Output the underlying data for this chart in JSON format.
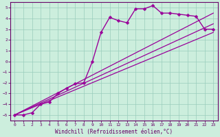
{
  "xlabel": "Windchill (Refroidissement éolien,°C)",
  "bg_color": "#cceedd",
  "grid_color": "#99ccbb",
  "line_color": "#990099",
  "spine_color": "#660066",
  "tick_color": "#660066",
  "label_color": "#660066",
  "xlim": [
    -0.5,
    23.5
  ],
  "ylim": [
    -5.5,
    5.5
  ],
  "xticks": [
    0,
    1,
    2,
    3,
    4,
    5,
    6,
    7,
    8,
    9,
    10,
    11,
    12,
    13,
    14,
    15,
    16,
    17,
    18,
    19,
    20,
    21,
    22,
    23
  ],
  "yticks": [
    -5,
    -4,
    -3,
    -2,
    -1,
    0,
    1,
    2,
    3,
    4,
    5
  ],
  "series": [
    {
      "x": [
        0,
        1,
        2,
        3,
        4,
        5,
        6,
        7,
        8,
        9,
        10,
        11,
        12,
        13,
        14,
        15,
        16,
        17,
        18,
        19,
        20,
        21,
        22,
        23
      ],
      "y": [
        -5,
        -5,
        -4.8,
        -4,
        -3.8,
        -3,
        -2.5,
        -2.1,
        -2,
        0,
        2.7,
        4.1,
        3.8,
        3.6,
        4.9,
        4.9,
        5.2,
        4.5,
        4.5,
        4.4,
        4.3,
        4.2,
        3.0,
        3.0
      ],
      "has_marker": true,
      "markersize": 2.5,
      "linewidth": 1.0
    },
    {
      "x": [
        0,
        23
      ],
      "y": [
        -5,
        2.7
      ],
      "has_marker": false,
      "linewidth": 0.9
    },
    {
      "x": [
        0,
        23
      ],
      "y": [
        -5,
        3.5
      ],
      "has_marker": false,
      "linewidth": 0.9
    },
    {
      "x": [
        0,
        23
      ],
      "y": [
        -5,
        4.5
      ],
      "has_marker": false,
      "linewidth": 0.9
    }
  ],
  "tick_fontsize": 4.5,
  "label_fontsize": 5.5
}
